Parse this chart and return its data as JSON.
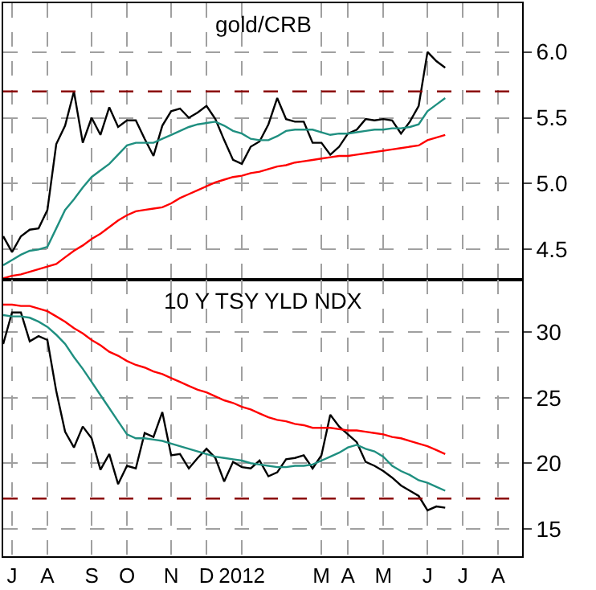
{
  "chart_data": [
    {
      "type": "line",
      "title": "gold/CRB",
      "grid": true,
      "tick_labels": "y",
      "categories": [
        null,
        null,
        null,
        null,
        null,
        null,
        null,
        null,
        null,
        null,
        null,
        null,
        null,
        null,
        null,
        null,
        null,
        null,
        null,
        null,
        null,
        null,
        null,
        null,
        null,
        null,
        null,
        null,
        null,
        null,
        null,
        null,
        null,
        null,
        null,
        null,
        null,
        null,
        null,
        null,
        null,
        null,
        null,
        null,
        null,
        null,
        null,
        null,
        null,
        null,
        null,
        null,
        null,
        null,
        null,
        null,
        null,
        null,
        null
      ],
      "ylim": [
        4.27,
        6.37
      ],
      "yticks": [
        {
          "value": 4.5,
          "label": "4.5"
        },
        {
          "value": 5.0,
          "label": "5.0"
        },
        {
          "value": 5.5,
          "label": "5.5"
        },
        {
          "value": 6.0,
          "label": "6.0"
        }
      ],
      "ref_lines": [
        {
          "axis": "y",
          "value": 5.7,
          "color": "#8b0000",
          "line_style": "dashed"
        }
      ],
      "series": [
        {
          "color": "#000000",
          "values": [
            4.6,
            4.48,
            4.6,
            4.65,
            4.66,
            4.8,
            5.3,
            5.44,
            5.7,
            5.31,
            5.5,
            5.37,
            5.58,
            5.43,
            5.48,
            5.48,
            5.34,
            5.21,
            5.44,
            5.55,
            5.57,
            5.5,
            5.54,
            5.59,
            5.49,
            5.33,
            5.18,
            5.15,
            5.28,
            5.32,
            5.45,
            5.65,
            5.49,
            5.47,
            5.47,
            5.31,
            5.31,
            5.22,
            5.28,
            5.38,
            5.41,
            5.49,
            5.48,
            5.49,
            5.48,
            5.38,
            5.47,
            5.59,
            6.0,
            5.93,
            5.88,
            null,
            null,
            null,
            null,
            null,
            null,
            null,
            null
          ]
        },
        {
          "color": "#1f8f80",
          "values": [
            4.38,
            4.42,
            4.46,
            4.49,
            4.5,
            4.52,
            4.66,
            4.8,
            4.88,
            4.97,
            5.05,
            5.1,
            5.15,
            5.22,
            5.29,
            5.31,
            5.31,
            5.31,
            5.34,
            5.37,
            5.4,
            5.43,
            5.45,
            5.46,
            5.47,
            5.44,
            5.4,
            5.38,
            5.34,
            5.33,
            5.33,
            5.36,
            5.4,
            5.41,
            5.41,
            5.41,
            5.39,
            5.37,
            5.38,
            5.38,
            5.39,
            5.4,
            5.41,
            5.41,
            5.42,
            5.42,
            5.43,
            5.45,
            5.55,
            5.6,
            5.65,
            null,
            null,
            null,
            null,
            null,
            null,
            null,
            null
          ]
        },
        {
          "color": "#ff0000",
          "values": [
            4.28,
            4.3,
            4.31,
            4.33,
            4.35,
            4.37,
            4.39,
            4.44,
            4.49,
            4.53,
            4.58,
            4.62,
            4.67,
            4.72,
            4.76,
            4.79,
            4.8,
            4.81,
            4.82,
            4.85,
            4.89,
            4.92,
            4.95,
            4.98,
            5.01,
            5.03,
            5.05,
            5.06,
            5.08,
            5.09,
            5.11,
            5.13,
            5.14,
            5.16,
            5.17,
            5.18,
            5.19,
            5.2,
            5.21,
            5.21,
            5.22,
            5.23,
            5.24,
            5.25,
            5.26,
            5.27,
            5.28,
            5.29,
            5.33,
            5.35,
            5.37,
            null,
            null,
            null,
            null,
            null,
            null,
            null,
            null
          ]
        }
      ]
    },
    {
      "type": "line",
      "title": "10 Y TSY YLD NDX",
      "grid": true,
      "categories": [
        null,
        "J",
        null,
        null,
        null,
        "A",
        null,
        null,
        null,
        null,
        "S",
        null,
        null,
        null,
        "O",
        null,
        null,
        null,
        null,
        "N",
        null,
        null,
        null,
        "D",
        null,
        null,
        null,
        "2012",
        null,
        null,
        null,
        null,
        null,
        null,
        null,
        null,
        "M",
        null,
        null,
        "A",
        null,
        null,
        null,
        "M",
        null,
        null,
        null,
        null,
        "J",
        null,
        null,
        null,
        "J",
        null,
        null,
        null,
        "A",
        null,
        null
      ],
      "ylim": [
        12.9,
        34.0
      ],
      "yticks": [
        15,
        20,
        25,
        30
      ],
      "ref_lines": [
        {
          "axis": "y",
          "value": 17.3,
          "color": "#8b0000",
          "line_style": "dashed"
        }
      ],
      "series": [
        {
          "color": "#000000",
          "values": [
            29.1,
            31.5,
            31.5,
            29.3,
            29.7,
            29.4,
            25.5,
            22.4,
            21.2,
            22.8,
            21.9,
            19.5,
            20.7,
            18.4,
            19.8,
            19.6,
            22.3,
            22.0,
            23.9,
            20.6,
            20.7,
            19.6,
            20.4,
            21.1,
            20.4,
            18.6,
            20.1,
            19.7,
            19.6,
            20.2,
            19.0,
            19.3,
            20.3,
            20.4,
            20.6,
            19.6,
            20.6,
            23.7,
            22.8,
            22.2,
            21.6,
            20.1,
            19.8,
            19.4,
            18.9,
            18.3,
            17.9,
            17.5,
            16.4,
            16.7,
            16.6,
            null,
            null,
            null,
            null,
            null,
            null,
            null,
            null
          ]
        },
        {
          "color": "#1f8f80",
          "values": [
            31.3,
            31.2,
            31.2,
            31.1,
            30.8,
            30.4,
            29.8,
            29.1,
            28.1,
            27.2,
            26.2,
            25.2,
            24.2,
            23.2,
            22.2,
            21.9,
            21.9,
            21.8,
            21.7,
            21.5,
            21.3,
            21.1,
            20.9,
            20.7,
            20.5,
            20.4,
            20.3,
            20.2,
            20.0,
            19.9,
            19.8,
            19.7,
            19.7,
            19.8,
            19.8,
            19.9,
            20.2,
            20.5,
            20.8,
            21.2,
            21.4,
            21.1,
            20.9,
            20.5,
            19.8,
            19.4,
            19.1,
            18.7,
            18.5,
            18.2,
            17.9,
            null,
            null,
            null,
            null,
            null,
            null,
            null,
            null
          ]
        },
        {
          "color": "#ff0000",
          "values": [
            32.1,
            32.1,
            32.0,
            32.0,
            31.8,
            31.6,
            31.2,
            30.8,
            30.3,
            29.9,
            29.4,
            29.0,
            28.5,
            28.2,
            27.8,
            27.5,
            27.3,
            27.0,
            26.8,
            26.5,
            26.2,
            25.9,
            25.6,
            25.4,
            25.1,
            24.8,
            24.6,
            24.3,
            24.1,
            23.8,
            23.5,
            23.3,
            23.2,
            23.0,
            22.9,
            22.7,
            22.7,
            22.7,
            22.6,
            22.5,
            22.5,
            22.4,
            22.3,
            22.2,
            22.0,
            21.9,
            21.7,
            21.5,
            21.3,
            21.0,
            20.7,
            null,
            null,
            null,
            null,
            null,
            null,
            null,
            null
          ]
        }
      ]
    }
  ]
}
